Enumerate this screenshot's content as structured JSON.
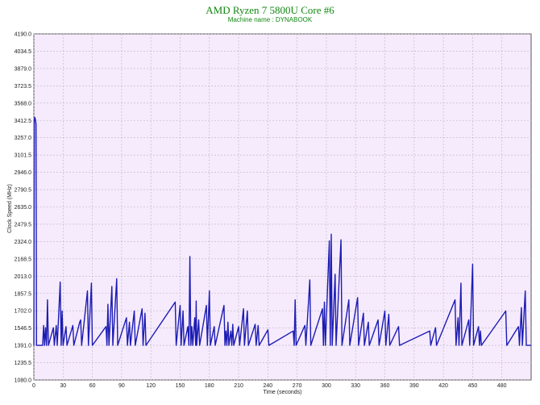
{
  "title": "AMD Ryzen 7 5800U Core #6",
  "subtitle": "Machine name : DYNABOOK",
  "chart_data": {
    "type": "line",
    "xlabel": "Time (seconds)",
    "ylabel": "Clock Speed (MHz)",
    "xlim": [
      0,
      510
    ],
    "ylim": [
      1080.0,
      4190.0
    ],
    "xticks": [
      0,
      30,
      60,
      90,
      120,
      150,
      180,
      210,
      240,
      270,
      300,
      330,
      360,
      390,
      420,
      450,
      480
    ],
    "yticks": [
      "1080.0",
      "1235.5",
      "1391.0",
      "1546.5",
      "1702.0",
      "1857.5",
      "2013.0",
      "2168.5",
      "2324.0",
      "2479.5",
      "2635.0",
      "2790.5",
      "2946.0",
      "3101.5",
      "3257.0",
      "3412.5",
      "3568.0",
      "3723.5",
      "3879.0",
      "4034.5",
      "4190.0"
    ],
    "grid": true,
    "baseline": 1391,
    "series": [
      {
        "color": "#1c1cb4",
        "points": [
          [
            0,
            1391
          ],
          [
            0.5,
            3412
          ],
          [
            1,
            3440
          ],
          [
            1.6,
            3420
          ],
          [
            2.2,
            3380
          ],
          [
            2.7,
            1391
          ],
          [
            9,
            1391
          ],
          [
            10,
            1570
          ],
          [
            11,
            1391
          ],
          [
            12,
            1550
          ],
          [
            13,
            1391
          ],
          [
            14,
            1800
          ],
          [
            15,
            1391
          ],
          [
            20,
            1550
          ],
          [
            21,
            1391
          ],
          [
            23,
            1570
          ],
          [
            24,
            1391
          ],
          [
            27,
            1960
          ],
          [
            28,
            1391
          ],
          [
            29,
            1700
          ],
          [
            30,
            1391
          ],
          [
            33,
            1560
          ],
          [
            34,
            1391
          ],
          [
            40,
            1570
          ],
          [
            41,
            1391
          ],
          [
            47,
            1600
          ],
          [
            48,
            1620
          ],
          [
            49,
            1391
          ],
          [
            55,
            1880
          ],
          [
            56,
            1391
          ],
          [
            59,
            1950
          ],
          [
            60,
            1391
          ],
          [
            74,
            1560
          ],
          [
            75,
            1391
          ],
          [
            76,
            1760
          ],
          [
            77,
            1391
          ],
          [
            80,
            1920
          ],
          [
            81,
            1391
          ],
          [
            85,
            1990
          ],
          [
            86,
            1391
          ],
          [
            95,
            1640
          ],
          [
            96,
            1391
          ],
          [
            98,
            1600
          ],
          [
            99,
            1391
          ],
          [
            103,
            1700
          ],
          [
            104,
            1391
          ],
          [
            111,
            1720
          ],
          [
            112,
            1391
          ],
          [
            114,
            1680
          ],
          [
            115,
            1391
          ],
          [
            145,
            1780
          ],
          [
            146,
            1391
          ],
          [
            150,
            1750
          ],
          [
            151,
            1391
          ],
          [
            153,
            1700
          ],
          [
            154,
            1391
          ],
          [
            158,
            1560
          ],
          [
            159,
            1391
          ],
          [
            160,
            2190
          ],
          [
            161,
            1391
          ],
          [
            162,
            1560
          ],
          [
            163,
            1391
          ],
          [
            165,
            1640
          ],
          [
            166,
            1391
          ],
          [
            166.5,
            1790
          ],
          [
            167,
            1391
          ],
          [
            169,
            1620
          ],
          [
            170,
            1391
          ],
          [
            177,
            1750
          ],
          [
            178,
            1391
          ],
          [
            180,
            1880
          ],
          [
            181,
            1391
          ],
          [
            185,
            1560
          ],
          [
            186,
            1391
          ],
          [
            195,
            1750
          ],
          [
            196,
            1391
          ],
          [
            197,
            1520
          ],
          [
            198,
            1391
          ],
          [
            199,
            1600
          ],
          [
            200,
            1391
          ],
          [
            202,
            1520
          ],
          [
            203,
            1391
          ],
          [
            204,
            1580
          ],
          [
            205,
            1391
          ],
          [
            210,
            1560
          ],
          [
            211,
            1391
          ],
          [
            215,
            1720
          ],
          [
            216,
            1391
          ],
          [
            219,
            1700
          ],
          [
            220,
            1391
          ],
          [
            227,
            1580
          ],
          [
            228,
            1391
          ],
          [
            230,
            1570
          ],
          [
            231,
            1391
          ],
          [
            240,
            1530
          ],
          [
            241,
            1391
          ],
          [
            266,
            1520
          ],
          [
            267,
            1391
          ],
          [
            268,
            1800
          ],
          [
            269,
            1391
          ],
          [
            278,
            1570
          ],
          [
            279,
            1391
          ],
          [
            283,
            1980
          ],
          [
            284,
            1391
          ],
          [
            296,
            1720
          ],
          [
            297,
            1391
          ],
          [
            298,
            1780
          ],
          [
            299,
            1391
          ],
          [
            303,
            2330
          ],
          [
            304,
            1391
          ],
          [
            305,
            2390
          ],
          [
            306,
            1391
          ],
          [
            309,
            2030
          ],
          [
            310,
            1391
          ],
          [
            315,
            2340
          ],
          [
            316,
            1391
          ],
          [
            323,
            1800
          ],
          [
            324,
            1391
          ],
          [
            332,
            1820
          ],
          [
            333,
            1391
          ],
          [
            338,
            1680
          ],
          [
            339,
            1391
          ],
          [
            343,
            1600
          ],
          [
            344,
            1391
          ],
          [
            353,
            1620
          ],
          [
            354,
            1391
          ],
          [
            360,
            1700
          ],
          [
            361,
            1391
          ],
          [
            364,
            1670
          ],
          [
            365,
            1391
          ],
          [
            374,
            1560
          ],
          [
            375,
            1391
          ],
          [
            406,
            1520
          ],
          [
            407,
            1391
          ],
          [
            412,
            1550
          ],
          [
            413,
            1391
          ],
          [
            432,
            1800
          ],
          [
            433,
            1391
          ],
          [
            435,
            1640
          ],
          [
            436,
            1391
          ],
          [
            438,
            1950
          ],
          [
            439,
            1391
          ],
          [
            446,
            1620
          ],
          [
            447,
            1391
          ],
          [
            450,
            2120
          ],
          [
            451,
            1391
          ],
          [
            456,
            1560
          ],
          [
            457,
            1391
          ],
          [
            458,
            1520
          ],
          [
            459,
            1391
          ],
          [
            484,
            1700
          ],
          [
            485,
            1391
          ],
          [
            497,
            1560
          ],
          [
            498,
            1391
          ],
          [
            500,
            1730
          ],
          [
            501,
            1391
          ],
          [
            504,
            1880
          ],
          [
            505,
            1391
          ],
          [
            510,
            1391
          ]
        ]
      }
    ]
  }
}
